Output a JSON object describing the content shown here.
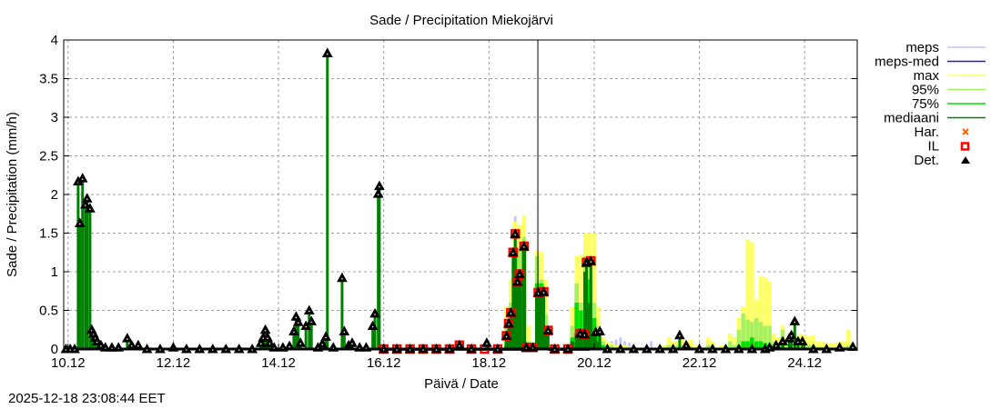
{
  "chart_data": {
    "type": "bar",
    "title": "Sade / Precipitation  Miekojärvi",
    "xlabel": "Päivä / Date",
    "ylabel": "Sade / Precipitation (mm/h)",
    "x_unit": "hours since 10.12 00:00",
    "xlim": [
      -2,
      360
    ],
    "ylim": [
      0,
      4
    ],
    "grid": true,
    "legend_position": "right-outside",
    "yticks": [
      "0",
      "0.5",
      "1",
      "1.5",
      "2",
      "2.5",
      "3",
      "3.5",
      "4"
    ],
    "xticks": [
      {
        "label": "10.12",
        "hour": 0
      },
      {
        "label": "12.12",
        "hour": 48
      },
      {
        "label": "14.12",
        "hour": 96
      },
      {
        "label": "16.12",
        "hour": 144
      },
      {
        "label": "18.12",
        "hour": 192
      },
      {
        "label": "20.12",
        "hour": 240
      },
      {
        "label": "22.12",
        "hour": 288
      },
      {
        "label": "24.12",
        "hour": 336
      }
    ],
    "now_hour": 214.3,
    "legend": [
      {
        "label": "meps",
        "color": "#c0c0ff",
        "kind": "line"
      },
      {
        "label": "meps-med",
        "color": "#2020c0",
        "kind": "line"
      },
      {
        "label": "max",
        "color": "#ffff66",
        "kind": "line"
      },
      {
        "label": "95%",
        "color": "#a8f060",
        "kind": "line"
      },
      {
        "label": "75%",
        "color": "#00e000",
        "kind": "line"
      },
      {
        "label": "mediaani",
        "color": "#008000",
        "kind": "line"
      },
      {
        "label": "Har.",
        "color": "#ff6000",
        "kind": "cross"
      },
      {
        "label": "IL",
        "color": "#ff0000",
        "kind": "square"
      },
      {
        "label": "Det.",
        "color": "#000000",
        "kind": "triangle"
      }
    ],
    "forecast_columns": [
      "hour",
      "max",
      "p95",
      "p75",
      "median",
      "meps"
    ],
    "forecast": [
      [
        200,
        0.55,
        0.3,
        0.1,
        0.05,
        0
      ],
      [
        202,
        0.9,
        0.6,
        0.4,
        0.3,
        0
      ],
      [
        204,
        1.65,
        1.5,
        1.2,
        0.9,
        1.72
      ],
      [
        206,
        1.6,
        1.3,
        1.0,
        0.8,
        0
      ],
      [
        208,
        1.73,
        1.45,
        1.35,
        1.3,
        0
      ],
      [
        210,
        0.3,
        0.1,
        0.05,
        0,
        0
      ],
      [
        214,
        1.27,
        1.2,
        0.85,
        0.73,
        0
      ],
      [
        216,
        1.25,
        0.9,
        0.85,
        0.7,
        0
      ],
      [
        218,
        0.9,
        0.45,
        0.3,
        0.2,
        0
      ],
      [
        230,
        0.55,
        0.3,
        0.15,
        0.1,
        0
      ],
      [
        232,
        1.2,
        0.85,
        0.6,
        0.2,
        0
      ],
      [
        234,
        1.22,
        0.6,
        0.5,
        0.2,
        0
      ],
      [
        236,
        1.5,
        1.2,
        0.9,
        1.0,
        0
      ],
      [
        238,
        1.5,
        1.15,
        0.9,
        0.6,
        0
      ],
      [
        240,
        1.5,
        0.6,
        0.4,
        0.2,
        0
      ],
      [
        242,
        0.55,
        0.3,
        0.2,
        0.1,
        0
      ],
      [
        244,
        0.15,
        0.1,
        0.05,
        0,
        0
      ],
      [
        246,
        0.1,
        0.05,
        0,
        0,
        0
      ],
      [
        248,
        0.08,
        0.05,
        0,
        0,
        0.1
      ],
      [
        250,
        0.05,
        0.02,
        0,
        0,
        0.12
      ],
      [
        252,
        0.05,
        0,
        0,
        0,
        0.15
      ],
      [
        254,
        0.05,
        0,
        0,
        0,
        0.1
      ],
      [
        256,
        0.03,
        0,
        0,
        0,
        0.08
      ],
      [
        266,
        0.02,
        0,
        0,
        0,
        0.1
      ],
      [
        272,
        0.05,
        0.02,
        0,
        0,
        0
      ],
      [
        274,
        0.15,
        0.05,
        0,
        0,
        0
      ],
      [
        276,
        0.1,
        0.03,
        0,
        0,
        0
      ],
      [
        278,
        0.1,
        0.05,
        0,
        0,
        0
      ],
      [
        280,
        0.15,
        0.05,
        0,
        0,
        0
      ],
      [
        282,
        0.1,
        0.05,
        0,
        0,
        0
      ],
      [
        284,
        0.12,
        0.03,
        0,
        0,
        0
      ],
      [
        286,
        0.05,
        0,
        0,
        0,
        0
      ],
      [
        292,
        0.15,
        0.05,
        0,
        0,
        0
      ],
      [
        294,
        0.1,
        0.05,
        0,
        0,
        0
      ],
      [
        298,
        0.05,
        0,
        0,
        0,
        0
      ],
      [
        302,
        0.2,
        0.1,
        0,
        0,
        0
      ],
      [
        304,
        0.15,
        0.05,
        0,
        0,
        0
      ],
      [
        306,
        0.4,
        0.25,
        0.05,
        0,
        0
      ],
      [
        308,
        0.55,
        0.46,
        0.1,
        0,
        0
      ],
      [
        310,
        1.42,
        0.38,
        0.1,
        0,
        0
      ],
      [
        312,
        1.38,
        0.35,
        0.15,
        0,
        0
      ],
      [
        314,
        0.64,
        0.4,
        0.1,
        0,
        0
      ],
      [
        316,
        0.94,
        0.35,
        0.1,
        0,
        0
      ],
      [
        318,
        0.93,
        0.3,
        0.08,
        0,
        0
      ],
      [
        320,
        0.87,
        0.3,
        0.05,
        0,
        0
      ],
      [
        322,
        0.2,
        0.1,
        0.05,
        0,
        0
      ],
      [
        324,
        0.15,
        0.05,
        0,
        0,
        0
      ],
      [
        326,
        0.3,
        0.25,
        0.05,
        0,
        0
      ],
      [
        328,
        0.15,
        0.05,
        0,
        0,
        0
      ],
      [
        332,
        0.17,
        0.05,
        0,
        0,
        0
      ],
      [
        334,
        0.2,
        0.05,
        0,
        0,
        0
      ],
      [
        336,
        0.18,
        0.05,
        0,
        0,
        0
      ],
      [
        338,
        0.17,
        0.05,
        0,
        0,
        0
      ],
      [
        340,
        0.18,
        0.05,
        0,
        0,
        0
      ],
      [
        342,
        0.1,
        0.03,
        0,
        0,
        0
      ],
      [
        344,
        0.1,
        0.03,
        0,
        0,
        0
      ],
      [
        346,
        0.08,
        0.02,
        0,
        0,
        0
      ],
      [
        348,
        0.08,
        0.02,
        0,
        0,
        0
      ],
      [
        350,
        0.08,
        0.02,
        0,
        0,
        0
      ],
      [
        352,
        0.1,
        0.02,
        0,
        0,
        0
      ],
      [
        354,
        0.1,
        0.03,
        0,
        0,
        0
      ],
      [
        356,
        0.25,
        0.05,
        0,
        0,
        0
      ]
    ],
    "observations_det": [
      [
        -1,
        0
      ],
      [
        1,
        0
      ],
      [
        3,
        0
      ],
      [
        4.6,
        2.17
      ],
      [
        5.4,
        1.63
      ],
      [
        6.6,
        2.21
      ],
      [
        7.9,
        1.87
      ],
      [
        8.7,
        1.95
      ],
      [
        10,
        1.82
      ],
      [
        10.8,
        0.25
      ],
      [
        11.6,
        0.2
      ],
      [
        12.4,
        0.15
      ],
      [
        13.2,
        0.1
      ],
      [
        15,
        0.05
      ],
      [
        17,
        0.02
      ],
      [
        20,
        0.02
      ],
      [
        23,
        0.02
      ],
      [
        27,
        0.14
      ],
      [
        29,
        0.05
      ],
      [
        32,
        0.05
      ],
      [
        36,
        0
      ],
      [
        42,
        0
      ],
      [
        48,
        0.02
      ],
      [
        54,
        0
      ],
      [
        60,
        0
      ],
      [
        66,
        0
      ],
      [
        72,
        0
      ],
      [
        78,
        0
      ],
      [
        84,
        0
      ],
      [
        88,
        0.08
      ],
      [
        89,
        0.15
      ],
      [
        90,
        0.25
      ],
      [
        91,
        0.15
      ],
      [
        92,
        0.08
      ],
      [
        94,
        0.02
      ],
      [
        98,
        0.02
      ],
      [
        101,
        0.04
      ],
      [
        103,
        0.23
      ],
      [
        104,
        0.42
      ],
      [
        105,
        0.35
      ],
      [
        106,
        0.08
      ],
      [
        108.5,
        0.3
      ],
      [
        110,
        0.5
      ],
      [
        111,
        0.36
      ],
      [
        114,
        0.02
      ],
      [
        116,
        0.07
      ],
      [
        117.6,
        0.16
      ],
      [
        118.3,
        3.83
      ],
      [
        121,
        0.02
      ],
      [
        125,
        0.92
      ],
      [
        126,
        0.23
      ],
      [
        128,
        0.05
      ],
      [
        129.6,
        0.08
      ],
      [
        133,
        0.02
      ],
      [
        136,
        0.02
      ],
      [
        139,
        0.3
      ],
      [
        140,
        0.46
      ],
      [
        141.5,
        2.01
      ],
      [
        142,
        2.11
      ],
      [
        144,
        0
      ],
      [
        150,
        0
      ],
      [
        156,
        0
      ],
      [
        162,
        0
      ],
      [
        168,
        0
      ],
      [
        174,
        0
      ],
      [
        178.5,
        0.05
      ],
      [
        184,
        0
      ],
      [
        191,
        0.08
      ],
      [
        196,
        0
      ],
      [
        200,
        0.17
      ],
      [
        201,
        0.33
      ],
      [
        202,
        0.47
      ],
      [
        203,
        1.25
      ],
      [
        204,
        1.49
      ],
      [
        205,
        0.87
      ],
      [
        206,
        0.97
      ],
      [
        208,
        1.33
      ],
      [
        209,
        0.02
      ],
      [
        212,
        0.02
      ],
      [
        214.5,
        0.73
      ],
      [
        217,
        0.74
      ],
      [
        219,
        0.24
      ],
      [
        222,
        0
      ],
      [
        228,
        0
      ],
      [
        233.6,
        0.2
      ],
      [
        235.6,
        0.19
      ],
      [
        236.5,
        1.12
      ],
      [
        238.5,
        1.14
      ],
      [
        240.7,
        0.22
      ],
      [
        242.6,
        0.23
      ],
      [
        246,
        0
      ],
      [
        252,
        0
      ],
      [
        258,
        0
      ],
      [
        264,
        0
      ],
      [
        270,
        0
      ],
      [
        276,
        0
      ],
      [
        279,
        0.18
      ],
      [
        282,
        0.05
      ],
      [
        288,
        0
      ],
      [
        294,
        0
      ],
      [
        300,
        0
      ],
      [
        306,
        0
      ],
      [
        312,
        0
      ],
      [
        318,
        0
      ],
      [
        320,
        0.02
      ],
      [
        323,
        0.05
      ],
      [
        326,
        0.1
      ],
      [
        329,
        0.14
      ],
      [
        330,
        0.18
      ],
      [
        331.5,
        0.36
      ],
      [
        333,
        0.1
      ],
      [
        335,
        0.1
      ],
      [
        340,
        0
      ],
      [
        346,
        0
      ],
      [
        352,
        0.02
      ],
      [
        358,
        0.03
      ]
    ],
    "observations_il": [
      [
        144,
        0
      ],
      [
        150,
        0
      ],
      [
        156,
        0
      ],
      [
        162,
        0
      ],
      [
        168,
        0
      ],
      [
        174,
        0
      ],
      [
        178.5,
        0.05
      ],
      [
        184,
        0
      ],
      [
        190,
        0
      ],
      [
        196,
        0
      ],
      [
        200,
        0.17
      ],
      [
        201,
        0.33
      ],
      [
        202,
        0.47
      ],
      [
        203,
        1.25
      ],
      [
        204,
        1.49
      ],
      [
        205,
        0.87
      ],
      [
        206,
        0.97
      ],
      [
        208,
        1.33
      ],
      [
        209,
        0.02
      ],
      [
        212,
        0.02
      ],
      [
        214.5,
        0.73
      ],
      [
        217,
        0.74
      ],
      [
        219,
        0.24
      ],
      [
        222,
        0
      ],
      [
        228,
        0
      ],
      [
        233.6,
        0.2
      ],
      [
        235.6,
        0.19
      ],
      [
        236.5,
        1.12
      ],
      [
        238.5,
        1.14
      ]
    ]
  },
  "footer": {
    "timestamp": "2025-12-18 23:08:44 EET"
  }
}
